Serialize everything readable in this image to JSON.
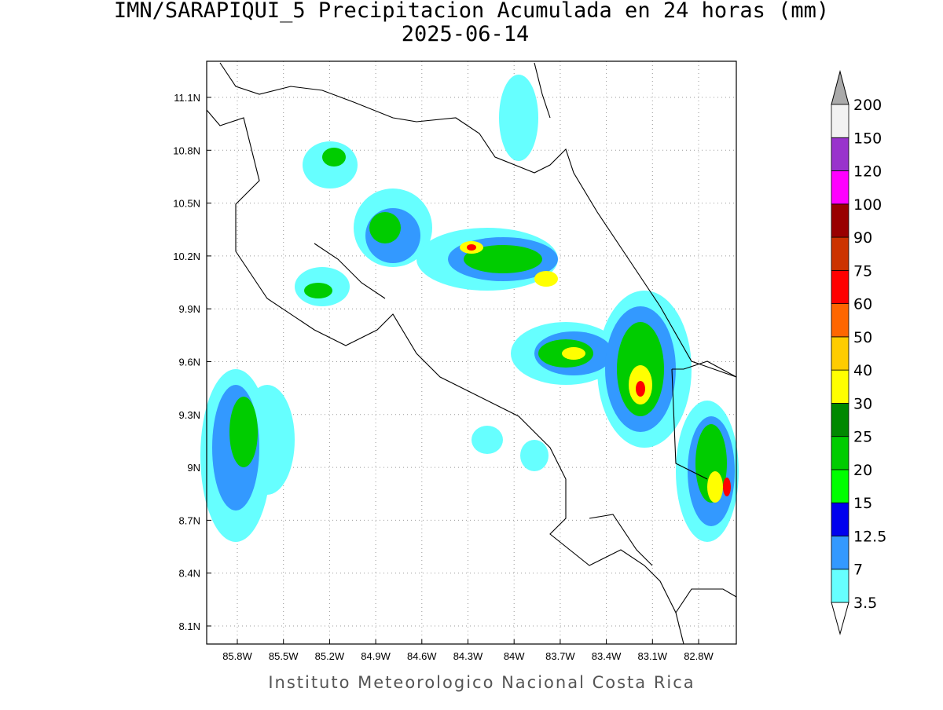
{
  "title": "IMN/SARAPIQUI_5 Precipitacion Acumulada en 24 horas (mm)",
  "subtitle": "2025-06-14",
  "x_axis": {
    "ticks": [
      "85.8W",
      "85.5W",
      "85.2W",
      "84.9W",
      "84.6W",
      "84.3W",
      "84W",
      "83.7W",
      "83.4W",
      "83.1W",
      "82.8W"
    ]
  },
  "y_axis": {
    "ticks": [
      "11.1N",
      "10.8N",
      "10.5N",
      "10.2N",
      "9.9N",
      "9.6N",
      "9.3N",
      "9N",
      "8.7N",
      "8.4N",
      "8.1N"
    ]
  },
  "colorbar": {
    "labels": [
      "3.5",
      "7",
      "12.5",
      "15",
      "20",
      "25",
      "30",
      "40",
      "50",
      "60",
      "75",
      "90",
      "100",
      "120",
      "150",
      "200"
    ],
    "colors": [
      "#66ffff",
      "#3399ff",
      "#0000ee",
      "#00ff00",
      "#00cc00",
      "#008800",
      "#ffff00",
      "#ffcc00",
      "#ff6600",
      "#ff0000",
      "#cc3300",
      "#990000",
      "#ff00ff",
      "#9933cc",
      "#f2f2f2"
    ],
    "under_color": "#ffffff",
    "over_color": "#aaaaaa"
  },
  "footer": "Instituto Meteorologico Nacional Costa Rica"
}
